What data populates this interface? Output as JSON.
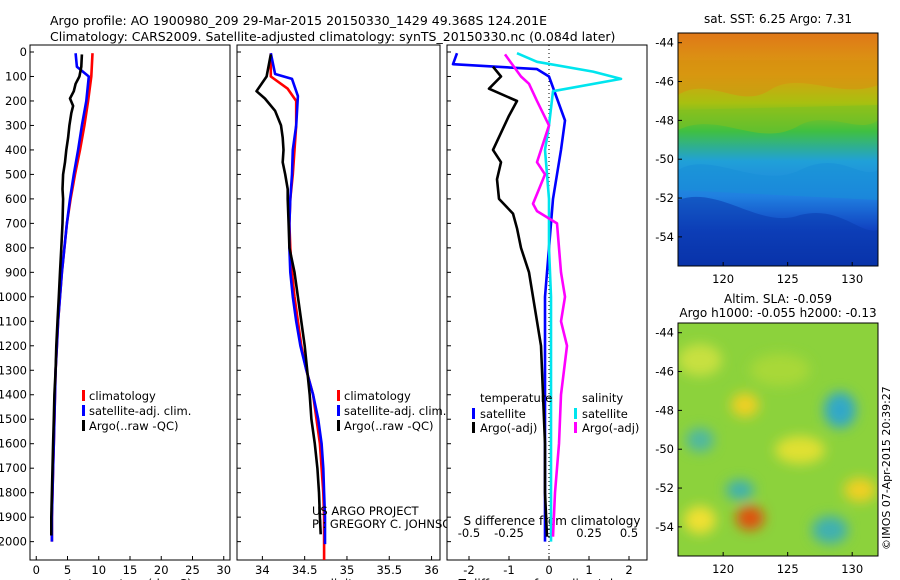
{
  "header": {
    "line1": "Argo profile: AO 1900980_209 29-Mar-2015 20150330_1429 49.368S 124.201E",
    "line2": "Climatology: CARS2009. Satellite-adjusted climatology: synTS_20150330.nc (0.084d later)"
  },
  "colors": {
    "climatology": "#ff0000",
    "satellite": "#0000ff",
    "argo": "#000000",
    "satellite_salinity": "#00e5ee",
    "argo_salinity": "#ff00ff"
  },
  "chart_data": [
    {
      "type": "line",
      "xlabel": "temperature (deg C)",
      "xlim": [
        -1,
        31
      ],
      "xticks": [
        "0",
        "5",
        "10",
        "15",
        "20",
        "25",
        "30"
      ],
      "ylim": [
        0,
        2075
      ],
      "yticks": [
        "0",
        "100",
        "200",
        "300",
        "400",
        "500",
        "600",
        "700",
        "800",
        "900",
        "1000",
        "1100",
        "1200",
        "1300",
        "1400",
        "1500",
        "1600",
        "1700",
        "1800",
        "1900",
        "2000"
      ],
      "legend": [
        "climatology",
        "satellite-adj. clim.",
        "Argo(..raw -QC)"
      ],
      "series": [
        {
          "name": "climatology",
          "color": "#ff0000",
          "points": [
            [
              9,
              5
            ],
            [
              8.8,
              100
            ],
            [
              8.3,
              200
            ],
            [
              7.7,
              300
            ],
            [
              7,
              400
            ],
            [
              6.2,
              500
            ],
            [
              5.5,
              600
            ],
            [
              4.9,
              700
            ],
            [
              4.5,
              800
            ],
            [
              4.1,
              900
            ],
            [
              3.8,
              1000
            ],
            [
              3.5,
              1100
            ],
            [
              3.3,
              1200
            ],
            [
              3.1,
              1300
            ],
            [
              3,
              1400
            ],
            [
              2.9,
              1500
            ],
            [
              2.8,
              1600
            ],
            [
              2.7,
              1700
            ],
            [
              2.6,
              1800
            ],
            [
              2.5,
              1900
            ],
            [
              2.5,
              2000
            ]
          ]
        },
        {
          "name": "satellite-adj. clim.",
          "color": "#0000ff",
          "points": [
            [
              6.3,
              5
            ],
            [
              6.5,
              60
            ],
            [
              8.4,
              100
            ],
            [
              8,
              200
            ],
            [
              7.3,
              300
            ],
            [
              6.7,
              400
            ],
            [
              6,
              500
            ],
            [
              5.4,
              600
            ],
            [
              4.9,
              700
            ],
            [
              4.5,
              800
            ],
            [
              4.1,
              900
            ],
            [
              3.8,
              1000
            ],
            [
              3.5,
              1100
            ],
            [
              3.3,
              1200
            ],
            [
              3.1,
              1300
            ],
            [
              3,
              1400
            ],
            [
              2.9,
              1500
            ],
            [
              2.8,
              1600
            ],
            [
              2.7,
              1700
            ],
            [
              2.6,
              1800
            ],
            [
              2.5,
              1900
            ],
            [
              2.5,
              2000
            ]
          ]
        },
        {
          "name": "Argo(..raw -QC)",
          "color": "#000000",
          "points": [
            [
              7.3,
              10
            ],
            [
              7.2,
              60
            ],
            [
              6.9,
              100
            ],
            [
              6.3,
              130
            ],
            [
              6,
              160
            ],
            [
              5.4,
              190
            ],
            [
              5.9,
              220
            ],
            [
              5.6,
              250
            ],
            [
              5.3,
              300
            ],
            [
              5.1,
              350
            ],
            [
              4.8,
              400
            ],
            [
              4.6,
              450
            ],
            [
              4.3,
              500
            ],
            [
              4.2,
              560
            ],
            [
              4.3,
              600
            ],
            [
              4.2,
              700
            ],
            [
              4,
              800
            ],
            [
              3.8,
              900
            ],
            [
              3.6,
              1000
            ],
            [
              3.4,
              1100
            ],
            [
              3.2,
              1200
            ],
            [
              3.1,
              1300
            ],
            [
              2.9,
              1400
            ],
            [
              2.8,
              1500
            ],
            [
              2.7,
              1600
            ],
            [
              2.6,
              1700
            ],
            [
              2.5,
              1800
            ],
            [
              2.4,
              1900
            ],
            [
              2.4,
              1975
            ]
          ]
        }
      ]
    },
    {
      "type": "line",
      "xlabel": "salinity",
      "xlim": [
        33.7,
        36.1
      ],
      "xticks": [
        "34",
        "34.5",
        "35",
        "35.5",
        "36"
      ],
      "ylim": [
        0,
        2075
      ],
      "legend": [
        "climatology",
        "satellite-adj. clim.",
        "Argo(..raw -QC)"
      ],
      "series": [
        {
          "name": "climatology",
          "color": "#ff0000",
          "points": [
            [
              34.1,
              5
            ],
            [
              34.1,
              100
            ],
            [
              34.3,
              150
            ],
            [
              34.4,
              200
            ],
            [
              34.4,
              300
            ],
            [
              34.38,
              400
            ],
            [
              34.36,
              500
            ],
            [
              34.33,
              600
            ],
            [
              34.32,
              700
            ],
            [
              34.33,
              800
            ],
            [
              34.35,
              900
            ],
            [
              34.38,
              1000
            ],
            [
              34.42,
              1100
            ],
            [
              34.46,
              1200
            ],
            [
              34.52,
              1300
            ],
            [
              34.6,
              1400
            ],
            [
              34.64,
              1500
            ],
            [
              34.68,
              1600
            ],
            [
              34.7,
              1700
            ],
            [
              34.72,
              1800
            ],
            [
              34.73,
              1900
            ],
            [
              34.73,
              2075
            ]
          ]
        },
        {
          "name": "satellite-adj. clim.",
          "color": "#0000ff",
          "points": [
            [
              34.1,
              5
            ],
            [
              34.15,
              90
            ],
            [
              34.35,
              110
            ],
            [
              34.42,
              180
            ],
            [
              34.4,
              300
            ],
            [
              34.36,
              400
            ],
            [
              34.35,
              500
            ],
            [
              34.33,
              600
            ],
            [
              34.32,
              700
            ],
            [
              34.32,
              800
            ],
            [
              34.33,
              900
            ],
            [
              34.36,
              1000
            ],
            [
              34.4,
              1100
            ],
            [
              34.45,
              1200
            ],
            [
              34.52,
              1300
            ],
            [
              34.6,
              1400
            ],
            [
              34.66,
              1500
            ],
            [
              34.7,
              1600
            ],
            [
              34.72,
              1700
            ],
            [
              34.73,
              1800
            ],
            [
              34.74,
              1900
            ],
            [
              34.74,
              2010
            ]
          ]
        },
        {
          "name": "Argo(..raw -QC)",
          "color": "#000000",
          "points": [
            [
              34.1,
              10
            ],
            [
              34.05,
              100
            ],
            [
              33.93,
              160
            ],
            [
              34.03,
              190
            ],
            [
              34.15,
              240
            ],
            [
              34.22,
              300
            ],
            [
              34.24,
              350
            ],
            [
              34.25,
              400
            ],
            [
              34.24,
              450
            ],
            [
              34.27,
              500
            ],
            [
              34.3,
              560
            ],
            [
              34.3,
              600
            ],
            [
              34.31,
              700
            ],
            [
              34.32,
              800
            ],
            [
              34.38,
              900
            ],
            [
              34.42,
              1000
            ],
            [
              34.46,
              1100
            ],
            [
              34.5,
              1200
            ],
            [
              34.53,
              1300
            ],
            [
              34.56,
              1400
            ],
            [
              34.58,
              1500
            ],
            [
              34.62,
              1600
            ],
            [
              34.65,
              1700
            ],
            [
              34.67,
              1800
            ],
            [
              34.68,
              1900
            ],
            [
              34.69,
              1970
            ]
          ]
        }
      ],
      "annotations": [
        "US ARGO PROJECT",
        "PI: GREGORY C. JOHNSON"
      ]
    },
    {
      "type": "line",
      "xlabel": "T difference from climatology",
      "xlabel_top": "S difference from climatology",
      "xlim": [
        -2.55,
        2.45
      ],
      "xticks": [
        "-2",
        "-1",
        "0",
        "1",
        "2"
      ],
      "xticks_top": [
        "-0.5",
        "-0.25",
        "0",
        "0.25",
        "0.5"
      ],
      "ylim": [
        0,
        2075
      ],
      "legend_groups": [
        "temperature",
        "salinity"
      ],
      "legend": [
        "satellite",
        "Argo(-adj)",
        "satellite",
        "Argo(-adj)"
      ],
      "series": [
        {
          "name": "satellite",
          "color": "#0000ff",
          "points": [
            [
              -2.3,
              5
            ],
            [
              -2.4,
              50
            ],
            [
              -0.3,
              70
            ],
            [
              0,
              100
            ],
            [
              0.4,
              280
            ],
            [
              0.3,
              400
            ],
            [
              0.1,
              600
            ],
            [
              0,
              800
            ],
            [
              -0.1,
              1000
            ],
            [
              -0.1,
              1400
            ],
            [
              -0.1,
              2000
            ]
          ]
        },
        {
          "name": "Argo(-adj)",
          "color": "#000000",
          "points": [
            [
              -1.4,
              60
            ],
            [
              -1.2,
              100
            ],
            [
              -1.5,
              150
            ],
            [
              -0.8,
              200
            ],
            [
              -1,
              260
            ],
            [
              -1.2,
              330
            ],
            [
              -1.4,
              400
            ],
            [
              -1.2,
              450
            ],
            [
              -1.3,
              520
            ],
            [
              -1.25,
              600
            ],
            [
              -0.9,
              660
            ],
            [
              -0.8,
              720
            ],
            [
              -0.7,
              800
            ],
            [
              -0.5,
              900
            ],
            [
              -0.4,
              1000
            ],
            [
              -0.3,
              1100
            ],
            [
              -0.2,
              1200
            ],
            [
              -0.15,
              1400
            ],
            [
              -0.1,
              1600
            ],
            [
              -0.1,
              1800
            ],
            [
              -0.05,
              1980
            ]
          ]
        },
        {
          "name": "satellite",
          "color": "#00e5ee",
          "points": [
            [
              -0.8,
              5
            ],
            [
              -0.3,
              40
            ],
            [
              1.1,
              80
            ],
            [
              1.8,
              110
            ],
            [
              0.1,
              160
            ],
            [
              0,
              300
            ],
            [
              -0.1,
              400
            ],
            [
              0,
              600
            ],
            [
              0,
              800
            ],
            [
              0.05,
              1000
            ],
            [
              0.05,
              1400
            ],
            [
              0.05,
              2000
            ]
          ]
        },
        {
          "name": "Argo(-adj)",
          "color": "#ff00ff",
          "points": [
            [
              -1.1,
              10
            ],
            [
              -0.7,
              100
            ],
            [
              -0.5,
              130
            ],
            [
              -0.3,
              200
            ],
            [
              0,
              300
            ],
            [
              -0.2,
              400
            ],
            [
              -0.3,
              450
            ],
            [
              -0.1,
              500
            ],
            [
              -0.3,
              580
            ],
            [
              -0.4,
              620
            ],
            [
              -0.3,
              650
            ],
            [
              0.2,
              700
            ],
            [
              0.3,
              900
            ],
            [
              0.4,
              1000
            ],
            [
              0.3,
              1100
            ],
            [
              0.45,
              1200
            ],
            [
              0.3,
              1400
            ],
            [
              0.25,
              1600
            ],
            [
              0.15,
              1800
            ],
            [
              0.1,
              1980
            ]
          ]
        }
      ]
    }
  ],
  "maps": {
    "sst": {
      "title": "sat. SST: 6.25 Argo: 7.31",
      "yticks": [
        "-44",
        "-46",
        "-48",
        "-50",
        "-52",
        "-54"
      ],
      "xticks": [
        "120",
        "125",
        "130"
      ]
    },
    "sla": {
      "title1": "Altim. SLA: -0.059",
      "title2": "Argo h1000: -0.055 h2000: -0.13",
      "yticks": [
        "-44",
        "-46",
        "-48",
        "-50",
        "-52",
        "-54"
      ],
      "xticks": [
        "120",
        "125",
        "130"
      ]
    },
    "credit": "©IMOS 07-Apr-2015 20:39:27"
  }
}
